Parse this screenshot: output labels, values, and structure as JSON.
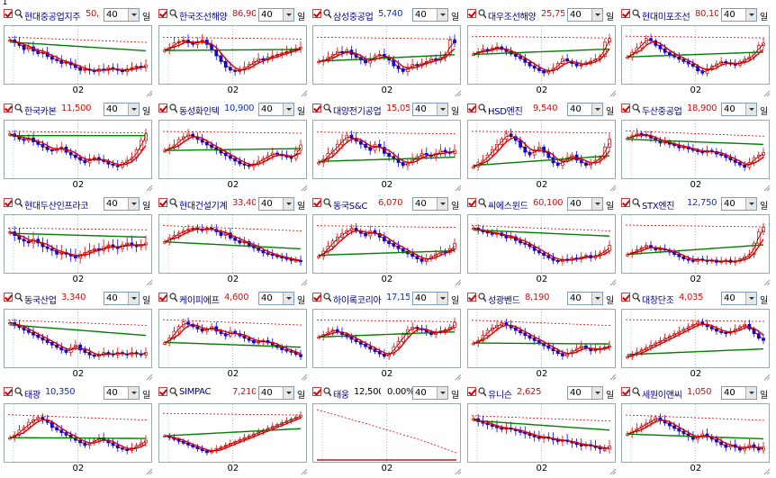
{
  "cursor": "I",
  "interval_label": "일",
  "x_tick_label": "02",
  "colors": {
    "red": "#e00000",
    "green": "#008000",
    "blue": "#0000ff",
    "dark": "#800000"
  },
  "panels": [
    {
      "name": "현대중공업지주",
      "price": "50,",
      "price_color": "red",
      "period": "40",
      "series": [
        62,
        60,
        58,
        55,
        57,
        54,
        52,
        53,
        50,
        48,
        47,
        45,
        46,
        44,
        42,
        40,
        41,
        40,
        39,
        41,
        40,
        42,
        41,
        40,
        39,
        41,
        42,
        43,
        42,
        44
      ],
      "trend": "down"
    },
    {
      "name": "한국조선해양",
      "price": "86,90",
      "price_color": "red",
      "period": "40",
      "series": [
        50,
        52,
        55,
        56,
        57,
        55,
        54,
        56,
        57,
        54,
        50,
        46,
        42,
        38,
        36,
        35,
        36,
        38,
        40,
        42,
        44,
        43,
        45,
        46,
        47,
        48,
        49,
        50,
        51,
        52
      ],
      "trend": "dip"
    },
    {
      "name": "삼성중공업",
      "price": "5,740",
      "price_color": "blue",
      "period": "40",
      "series": [
        45,
        46,
        48,
        50,
        52,
        51,
        53,
        50,
        48,
        46,
        44,
        47,
        49,
        50,
        48,
        46,
        42,
        40,
        38,
        41,
        43,
        42,
        44,
        45,
        47,
        46,
        48,
        50,
        60,
        58
      ],
      "trend": "up"
    },
    {
      "name": "대우조선해양",
      "price": "25,75",
      "price_color": "red",
      "period": "40",
      "series": [
        52,
        54,
        56,
        55,
        57,
        58,
        56,
        54,
        52,
        50,
        48,
        45,
        42,
        40,
        38,
        36,
        38,
        40,
        44,
        48,
        46,
        44,
        42,
        43,
        45,
        46,
        48,
        50,
        62,
        65
      ],
      "trend": "up"
    },
    {
      "name": "현대미포조선",
      "price": "80,10",
      "price_color": "red",
      "period": "40",
      "series": [
        48,
        52,
        56,
        60,
        64,
        62,
        58,
        55,
        52,
        50,
        48,
        46,
        44,
        42,
        40,
        36,
        34,
        38,
        40,
        42,
        44,
        43,
        42,
        41,
        44,
        46,
        48,
        52,
        58,
        60
      ],
      "trend": "up"
    },
    {
      "name": "한국카본",
      "price": "11,500",
      "price_color": "red",
      "period": "40",
      "series": [
        60,
        58,
        56,
        55,
        57,
        54,
        52,
        50,
        48,
        47,
        49,
        50,
        46,
        44,
        42,
        40,
        38,
        41,
        42,
        40,
        39,
        37,
        36,
        35,
        38,
        40,
        42,
        48,
        55,
        60
      ],
      "trend": "up"
    },
    {
      "name": "동성화인텍",
      "price": "10,900",
      "price_color": "blue",
      "period": "40",
      "series": [
        48,
        50,
        52,
        56,
        58,
        60,
        58,
        56,
        54,
        52,
        50,
        48,
        46,
        44,
        42,
        40,
        38,
        37,
        36,
        38,
        40,
        42,
        44,
        46,
        45,
        44,
        43,
        42,
        48,
        52
      ],
      "trend": "dip"
    },
    {
      "name": "대양전기공업",
      "price": "15,05",
      "price_color": "red",
      "period": "40",
      "series": [
        40,
        42,
        46,
        48,
        52,
        55,
        58,
        56,
        54,
        52,
        50,
        48,
        52,
        50,
        46,
        44,
        42,
        40,
        38,
        40,
        42,
        44,
        46,
        45,
        44,
        46,
        48,
        47,
        46,
        48
      ],
      "trend": "flat"
    },
    {
      "name": "HSD엔진",
      "price": "9,540",
      "price_color": "red",
      "period": "40",
      "series": [
        35,
        38,
        40,
        44,
        48,
        52,
        56,
        60,
        58,
        55,
        50,
        46,
        44,
        48,
        50,
        46,
        42,
        38,
        36,
        40,
        42,
        44,
        40,
        38,
        36,
        38,
        40,
        42,
        50,
        56
      ],
      "trend": "up"
    },
    {
      "name": "두산중공업",
      "price": "18,900",
      "price_color": "red",
      "period": "40",
      "series": [
        60,
        62,
        64,
        63,
        62,
        60,
        58,
        56,
        57,
        55,
        54,
        52,
        53,
        51,
        50,
        49,
        48,
        50,
        49,
        47,
        46,
        44,
        42,
        40,
        38,
        36,
        40,
        44,
        46,
        48
      ],
      "trend": "down"
    },
    {
      "name": "현대두산인프라코",
      "price": "",
      "price_color": "red",
      "period": "40",
      "series": [
        52,
        50,
        48,
        47,
        46,
        48,
        46,
        44,
        43,
        42,
        40,
        41,
        40,
        39,
        38,
        40,
        41,
        42,
        43,
        42,
        44,
        45,
        44,
        43,
        45,
        46,
        45,
        44,
        45,
        46
      ],
      "trend": "flat"
    },
    {
      "name": "현대건설기계",
      "price": "33,40",
      "price_color": "red",
      "period": "40",
      "series": [
        45,
        48,
        50,
        52,
        54,
        55,
        56,
        55,
        54,
        56,
        55,
        53,
        50,
        52,
        48,
        46,
        44,
        45,
        42,
        40,
        38,
        36,
        35,
        34,
        33,
        32,
        31,
        30,
        30,
        29
      ],
      "trend": "down"
    },
    {
      "name": "동국S&C",
      "price": "6,070",
      "price_color": "red",
      "period": "40",
      "series": [
        40,
        44,
        48,
        52,
        55,
        58,
        60,
        62,
        60,
        58,
        56,
        60,
        58,
        55,
        52,
        50,
        48,
        46,
        44,
        42,
        40,
        38,
        36,
        38,
        40,
        42,
        44,
        43,
        46,
        50
      ],
      "trend": "flat"
    },
    {
      "name": "씨에스윈드",
      "price": "60,100",
      "price_color": "red",
      "period": "40",
      "series": [
        60,
        58,
        57,
        56,
        55,
        56,
        54,
        52,
        53,
        50,
        48,
        47,
        45,
        42,
        40,
        38,
        36,
        34,
        33,
        35,
        34,
        36,
        35,
        37,
        38,
        36,
        38,
        40,
        42,
        46
      ],
      "trend": "down"
    },
    {
      "name": "STX엔진",
      "price": "12,750",
      "price_color": "blue",
      "period": "40",
      "series": [
        40,
        42,
        44,
        46,
        48,
        46,
        44,
        45,
        44,
        42,
        40,
        38,
        36,
        35,
        34,
        36,
        35,
        34,
        35,
        33,
        34,
        35,
        33,
        34,
        36,
        38,
        40,
        50,
        60,
        64
      ],
      "trend": "up"
    },
    {
      "name": "동국산업",
      "price": "3,340",
      "price_color": "red",
      "period": "40",
      "series": [
        62,
        60,
        58,
        56,
        54,
        52,
        50,
        48,
        46,
        44,
        42,
        40,
        38,
        42,
        44,
        40,
        38,
        36,
        35,
        36,
        38,
        37,
        36,
        38,
        37,
        36,
        38,
        37,
        36,
        38
      ],
      "trend": "down"
    },
    {
      "name": "케이피에프",
      "price": "4,600",
      "price_color": "red",
      "period": "40",
      "series": [
        40,
        44,
        50,
        54,
        58,
        56,
        54,
        52,
        50,
        52,
        54,
        50,
        48,
        46,
        50,
        48,
        46,
        44,
        42,
        40,
        41,
        42,
        40,
        38,
        36,
        34,
        33,
        32,
        30,
        28
      ],
      "trend": "down"
    },
    {
      "name": "하이록코리아",
      "price": "17,15",
      "price_color": "blue",
      "period": "40",
      "series": [
        48,
        50,
        52,
        54,
        52,
        50,
        48,
        46,
        44,
        42,
        40,
        38,
        36,
        34,
        32,
        34,
        40,
        44,
        50,
        54,
        56,
        55,
        54,
        52,
        50,
        52,
        53,
        54,
        56,
        60
      ],
      "trend": "up"
    },
    {
      "name": "성광벤드",
      "price": "8,190",
      "price_color": "red",
      "period": "40",
      "series": [
        46,
        48,
        52,
        56,
        58,
        60,
        62,
        60,
        58,
        56,
        54,
        52,
        50,
        48,
        46,
        44,
        42,
        40,
        38,
        36,
        38,
        40,
        42,
        44,
        42,
        40,
        41,
        42,
        43,
        44
      ],
      "trend": "down"
    },
    {
      "name": "대창단조",
      "price": "4,035",
      "price_color": "red",
      "period": "40",
      "series": [
        34,
        36,
        38,
        40,
        42,
        44,
        46,
        48,
        50,
        52,
        54,
        56,
        58,
        60,
        62,
        64,
        62,
        60,
        58,
        56,
        55,
        54,
        56,
        58,
        60,
        62,
        58,
        54,
        50,
        48
      ],
      "trend": "spike"
    },
    {
      "name": "태광",
      "price": "10,350",
      "price_color": "blue",
      "period": "40",
      "series": [
        44,
        46,
        50,
        52,
        56,
        58,
        60,
        58,
        56,
        52,
        50,
        48,
        46,
        44,
        42,
        40,
        38,
        40,
        42,
        44,
        42,
        40,
        38,
        36,
        35,
        34,
        36,
        38,
        40,
        42
      ],
      "trend": "down"
    },
    {
      "name": "SIMPAC",
      "price": "7,210",
      "price_color": "red",
      "period": "40",
      "series": [
        50,
        48,
        46,
        44,
        42,
        40,
        38,
        36,
        34,
        32,
        34,
        36,
        38,
        40,
        42,
        44,
        46,
        48,
        50,
        52,
        54,
        56,
        58,
        60,
        62,
        64,
        66,
        68,
        70,
        72
      ],
      "trend": "up"
    },
    {
      "name": "태웅",
      "price": "12,500",
      "price_color": "black",
      "pct": "0.00%",
      "period": "40",
      "series": [],
      "trend": "empty"
    },
    {
      "name": "유니슨",
      "price": "2,625",
      "price_color": "red",
      "period": "40",
      "series": [
        48,
        46,
        45,
        44,
        43,
        42,
        41,
        42,
        41,
        40,
        39,
        38,
        37,
        36,
        35,
        36,
        35,
        34,
        33,
        34,
        33,
        32,
        31,
        30,
        31,
        30,
        29,
        28,
        28,
        30
      ],
      "trend": "down"
    },
    {
      "name": "세원이앤씨",
      "price": "1,050",
      "price_color": "red",
      "period": "40",
      "series": [
        52,
        54,
        56,
        58,
        60,
        62,
        64,
        62,
        60,
        58,
        56,
        54,
        52,
        50,
        48,
        50,
        52,
        50,
        48,
        46,
        44,
        42,
        44,
        42,
        40,
        42,
        44,
        42,
        40,
        42
      ],
      "trend": "down"
    }
  ]
}
